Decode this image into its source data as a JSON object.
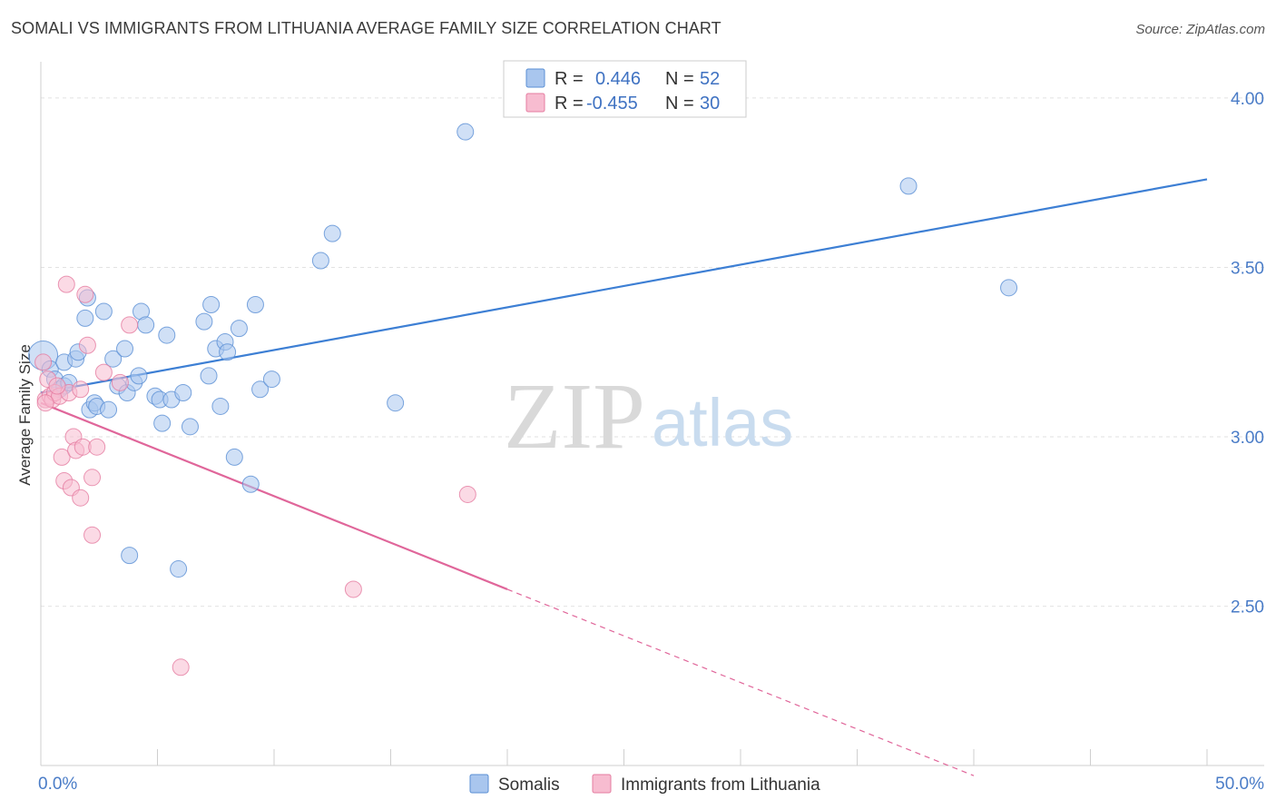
{
  "title": "SOMALI VS IMMIGRANTS FROM LITHUANIA AVERAGE FAMILY SIZE CORRELATION CHART",
  "source": "Source: ZipAtlas.com",
  "watermark": {
    "zip": "ZIP",
    "atlas": "atlas"
  },
  "colors": {
    "somali_fill": "#a9c6ee",
    "somali_stroke": "#5a8fd4",
    "somali_line": "#3d7fd4",
    "lith_fill": "#f7bcd0",
    "lith_stroke": "#e57ca0",
    "lith_line": "#e0669a",
    "tick_label": "#4a7cc7",
    "grid": "#e2e2e2"
  },
  "legend": {
    "rows": [
      {
        "r_label": "R =",
        "r_value": "0.446",
        "n_label": "N =",
        "n_value": "52"
      },
      {
        "r_label": "R =",
        "r_value": "-0.455",
        "n_label": "N =",
        "n_value": "30"
      }
    ]
  },
  "chart_data": {
    "type": "scatter",
    "title": "SOMALI VS IMMIGRANTS FROM LITHUANIA AVERAGE FAMILY SIZE CORRELATION CHART",
    "xlabel": "",
    "ylabel": "Average Family Size",
    "xlim": [
      0,
      50
    ],
    "ylim": [
      2.03,
      4.08
    ],
    "x_tick_labels": [
      "0.0%",
      "50.0%"
    ],
    "y_ticks": [
      2.5,
      3.0,
      3.5,
      4.0
    ],
    "y_tick_labels": [
      "2.50",
      "3.00",
      "3.50",
      "4.00"
    ],
    "grid": "horizontal dashed",
    "legend_position": "top-center",
    "series": [
      {
        "name": "Somalis",
        "points": [
          [
            0.1,
            3.24
          ],
          [
            0.4,
            3.2
          ],
          [
            0.6,
            3.17
          ],
          [
            0.8,
            3.14
          ],
          [
            1.0,
            3.15
          ],
          [
            1.0,
            3.22
          ],
          [
            1.2,
            3.16
          ],
          [
            1.5,
            3.23
          ],
          [
            1.6,
            3.25
          ],
          [
            1.9,
            3.35
          ],
          [
            2.0,
            3.41
          ],
          [
            2.1,
            3.08
          ],
          [
            2.3,
            3.1
          ],
          [
            2.4,
            3.09
          ],
          [
            2.7,
            3.37
          ],
          [
            2.9,
            3.08
          ],
          [
            3.1,
            3.23
          ],
          [
            3.3,
            3.15
          ],
          [
            3.6,
            3.26
          ],
          [
            3.7,
            3.13
          ],
          [
            3.8,
            2.65
          ],
          [
            4.0,
            3.16
          ],
          [
            4.2,
            3.18
          ],
          [
            4.3,
            3.37
          ],
          [
            4.5,
            3.33
          ],
          [
            4.9,
            3.12
          ],
          [
            5.1,
            3.11
          ],
          [
            5.2,
            3.04
          ],
          [
            5.4,
            3.3
          ],
          [
            5.6,
            3.11
          ],
          [
            5.9,
            2.61
          ],
          [
            6.1,
            3.13
          ],
          [
            6.4,
            3.03
          ],
          [
            7.0,
            3.34
          ],
          [
            7.2,
            3.18
          ],
          [
            7.3,
            3.39
          ],
          [
            7.5,
            3.26
          ],
          [
            7.7,
            3.09
          ],
          [
            7.9,
            3.28
          ],
          [
            8.0,
            3.25
          ],
          [
            8.3,
            2.94
          ],
          [
            8.5,
            3.32
          ],
          [
            9.0,
            2.86
          ],
          [
            9.2,
            3.39
          ],
          [
            9.4,
            3.14
          ],
          [
            9.9,
            3.17
          ],
          [
            12.0,
            3.52
          ],
          [
            12.5,
            3.6
          ],
          [
            15.2,
            3.1
          ],
          [
            18.2,
            3.9
          ],
          [
            37.2,
            3.74
          ],
          [
            41.5,
            3.44
          ]
        ]
      },
      {
        "name": "Immigrants from Lithuania",
        "points": [
          [
            0.1,
            3.22
          ],
          [
            0.2,
            3.11
          ],
          [
            0.3,
            3.17
          ],
          [
            0.4,
            3.12
          ],
          [
            0.5,
            3.11
          ],
          [
            0.6,
            3.13
          ],
          [
            0.8,
            3.12
          ],
          [
            0.9,
            2.94
          ],
          [
            1.0,
            2.87
          ],
          [
            1.1,
            3.45
          ],
          [
            1.2,
            3.13
          ],
          [
            1.3,
            2.85
          ],
          [
            1.4,
            3.0
          ],
          [
            1.5,
            2.96
          ],
          [
            1.7,
            2.82
          ],
          [
            1.7,
            3.14
          ],
          [
            1.8,
            2.97
          ],
          [
            1.9,
            3.42
          ],
          [
            2.0,
            3.27
          ],
          [
            2.2,
            2.88
          ],
          [
            2.2,
            2.71
          ],
          [
            2.4,
            2.97
          ],
          [
            2.7,
            3.19
          ],
          [
            3.4,
            3.16
          ],
          [
            3.8,
            3.33
          ],
          [
            6.0,
            2.32
          ],
          [
            13.4,
            2.55
          ],
          [
            18.3,
            2.83
          ],
          [
            0.2,
            3.1
          ],
          [
            0.7,
            3.15
          ]
        ]
      }
    ],
    "trend_lines": [
      {
        "series": "Somalis",
        "from": [
          0,
          3.13
        ],
        "to": [
          50,
          3.76
        ]
      },
      {
        "series": "Immigrants from Lithuania",
        "solid_from": [
          0,
          3.1
        ],
        "solid_to": [
          20,
          2.55
        ],
        "dashed_to": [
          40,
          2.0
        ]
      }
    ]
  }
}
